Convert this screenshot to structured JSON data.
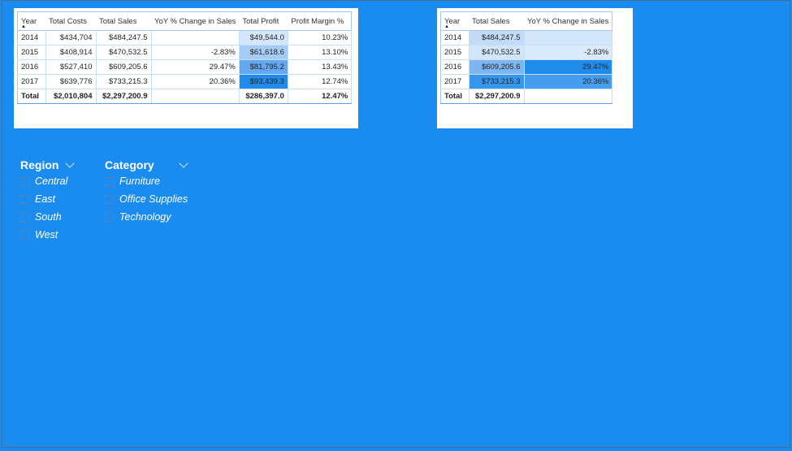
{
  "table1": {
    "headers": [
      "Year",
      "Total Costs",
      "Total Sales",
      "YoY % Change in Sales",
      "Total Profit",
      "Profit Margin %"
    ],
    "rows": [
      {
        "year": "2014",
        "costs": "$434,704",
        "sales": "$484,247.5",
        "yoy": "",
        "profit": "$49,544.0",
        "margin": "10.23%"
      },
      {
        "year": "2015",
        "costs": "$408,914",
        "sales": "$470,532.5",
        "yoy": "-2.83%",
        "profit": "$61,618.6",
        "margin": "13.10%"
      },
      {
        "year": "2016",
        "costs": "$527,410",
        "sales": "$609,205.6",
        "yoy": "29.47%",
        "profit": "$81,795.2",
        "margin": "13.43%"
      },
      {
        "year": "2017",
        "costs": "$639,776",
        "sales": "$733,215.3",
        "yoy": "20.36%",
        "profit": "$93,439.3",
        "margin": "12.74%"
      }
    ],
    "total": {
      "year": "Total",
      "costs": "$2,010,804",
      "sales": "$2,297,200.9",
      "yoy": "",
      "profit": "$286,397.0",
      "margin": "12.47%"
    },
    "profit_fill_colors": [
      "#d4e6fb",
      "#a4ccf6",
      "#63a8f0",
      "#1f8bea"
    ]
  },
  "table2": {
    "headers": [
      "Year",
      "Total Sales",
      "YoY % Change in Sales"
    ],
    "rows": [
      {
        "year": "2014",
        "sales": "$484,247.5",
        "yoy": ""
      },
      {
        "year": "2015",
        "sales": "$470,532.5",
        "yoy": "-2.83%"
      },
      {
        "year": "2016",
        "sales": "$609,205.6",
        "yoy": "29.47%"
      },
      {
        "year": "2017",
        "sales": "$733,215.3",
        "yoy": "20.36%"
      }
    ],
    "total": {
      "year": "Total",
      "sales": "$2,297,200.9"
    },
    "sales_fill_colors": [
      "#c3dbf7",
      "#d2e5fb",
      "#7db6f2",
      "#3795ec"
    ],
    "yoy_fill_colors": [
      "#d4e6fb",
      "#dbeafc",
      "#1f8bea",
      "#469def"
    ]
  },
  "region_slicer": {
    "title": "Region",
    "items": [
      "Central",
      "East",
      "South",
      "West"
    ]
  },
  "category_slicer": {
    "title": "Category",
    "items": [
      "Furniture",
      "Office Supplies",
      "Technology"
    ]
  },
  "colors": {
    "canvas_background": "#1a8cf0",
    "card_background": "#ffffff"
  }
}
